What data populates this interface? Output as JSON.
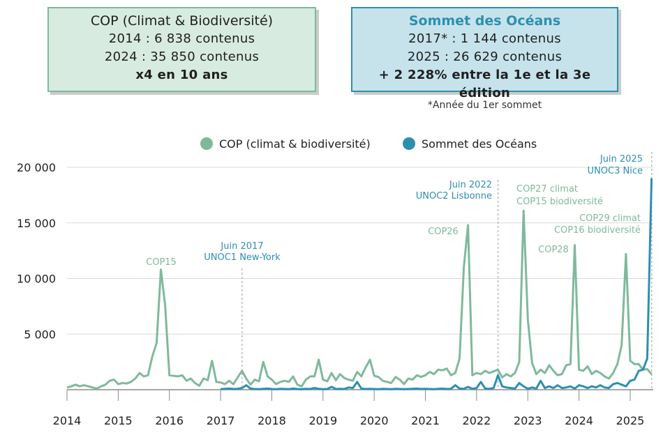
{
  "summary": {
    "cop": {
      "title": "COP (Climat & Biodiversité)",
      "line1": "2014 : 6 838 contenus",
      "line2": "2024 : 35 850 contenus",
      "line3": "x4 en 10 ans"
    },
    "ocean": {
      "title": "Sommet des Océans",
      "line1": "2017* : 1 144 contenus",
      "line2": "2025 : 26 629 contenus",
      "line3": "+ 2 228% entre la 1e et la 3e édition",
      "footnote": "*Année du 1er sommet"
    }
  },
  "colors": {
    "cop": "#7fb99c",
    "ocean": "#2d8fb0",
    "annotation_line": "#9a9a9a"
  },
  "chart_data": {
    "type": "line",
    "xlabel": "",
    "ylabel": "",
    "xlim": [
      2014,
      2025.45
    ],
    "ylim": [
      0,
      20000
    ],
    "grid": true,
    "legend_position": "top",
    "x_ticks": [
      2014,
      2015,
      2016,
      2017,
      2018,
      2019,
      2020,
      2021,
      2022,
      2023,
      2024,
      2025
    ],
    "x_tick_labels": [
      "2014",
      "2015",
      "2016",
      "2017",
      "2018",
      "2019",
      "2020",
      "2021",
      "2022",
      "2023",
      "2024",
      "2025"
    ],
    "y_ticks": [
      5000,
      10000,
      15000,
      20000
    ],
    "y_tick_labels": [
      "5 000",
      "10 000",
      "15 000",
      "20 000"
    ],
    "series": [
      {
        "name": "COP (climat & biodiversité)",
        "x": [
          2014.0,
          2014.083,
          2014.167,
          2014.25,
          2014.333,
          2014.417,
          2014.5,
          2014.583,
          2014.667,
          2014.75,
          2014.833,
          2014.917,
          2015.0,
          2015.083,
          2015.167,
          2015.25,
          2015.333,
          2015.417,
          2015.5,
          2015.583,
          2015.667,
          2015.75,
          2015.833,
          2015.917,
          2016.0,
          2016.083,
          2016.167,
          2016.25,
          2016.333,
          2016.417,
          2016.5,
          2016.583,
          2016.667,
          2016.75,
          2016.833,
          2016.917,
          2017.0,
          2017.083,
          2017.167,
          2017.25,
          2017.333,
          2017.417,
          2017.5,
          2017.583,
          2017.667,
          2017.75,
          2017.833,
          2017.917,
          2018.0,
          2018.083,
          2018.167,
          2018.25,
          2018.333,
          2018.417,
          2018.5,
          2018.583,
          2018.667,
          2018.75,
          2018.833,
          2018.917,
          2019.0,
          2019.083,
          2019.167,
          2019.25,
          2019.333,
          2019.417,
          2019.5,
          2019.583,
          2019.667,
          2019.75,
          2019.833,
          2019.917,
          2020.0,
          2020.083,
          2020.167,
          2020.25,
          2020.333,
          2020.417,
          2020.5,
          2020.583,
          2020.667,
          2020.75,
          2020.833,
          2020.917,
          2021.0,
          2021.083,
          2021.167,
          2021.25,
          2021.333,
          2021.417,
          2021.5,
          2021.583,
          2021.667,
          2021.75,
          2021.833,
          2021.917,
          2022.0,
          2022.083,
          2022.167,
          2022.25,
          2022.333,
          2022.417,
          2022.5,
          2022.583,
          2022.667,
          2022.75,
          2022.833,
          2022.917,
          2023.0,
          2023.083,
          2023.167,
          2023.25,
          2023.333,
          2023.417,
          2023.5,
          2023.583,
          2023.667,
          2023.75,
          2023.833,
          2023.917,
          2024.0,
          2024.083,
          2024.167,
          2024.25,
          2024.333,
          2024.417,
          2024.5,
          2024.583,
          2024.667,
          2024.75,
          2024.833,
          2024.917,
          2025.0,
          2025.083,
          2025.167,
          2025.25,
          2025.333,
          2025.417
        ],
        "values": [
          200,
          300,
          450,
          300,
          400,
          300,
          200,
          100,
          300,
          450,
          800,
          900,
          500,
          600,
          550,
          700,
          1000,
          1500,
          1200,
          1300,
          3000,
          4200,
          10800,
          7600,
          1300,
          1250,
          1200,
          1300,
          800,
          1000,
          600,
          350,
          1000,
          850,
          2600,
          700,
          650,
          500,
          800,
          500,
          1100,
          1700,
          1000,
          450,
          900,
          750,
          2500,
          1200,
          900,
          500,
          700,
          800,
          700,
          1200,
          450,
          300,
          900,
          1200,
          1200,
          2700,
          900,
          750,
          1500,
          850,
          1400,
          1050,
          900,
          800,
          1600,
          1200,
          2000,
          2700,
          1250,
          1150,
          800,
          700,
          600,
          1150,
          900,
          500,
          1000,
          900,
          1300,
          1150,
          1300,
          1600,
          1400,
          1800,
          1750,
          1900,
          1300,
          1500,
          2800,
          11000,
          14800,
          1300,
          1500,
          1400,
          1700,
          1500,
          1650,
          1800,
          1100,
          1400,
          1200,
          1500,
          2500,
          16100,
          6300,
          2400,
          1400,
          1800,
          1500,
          2200,
          1700,
          1300,
          1400,
          2200,
          2300,
          13000,
          1800,
          1700,
          2100,
          1400,
          1700,
          1500,
          1200,
          1000,
          1500,
          2300,
          4000,
          12200,
          2600,
          2300,
          2300,
          1800,
          1850,
          1400
        ]
      },
      {
        "name": "Sommet des Océans",
        "x": [
          2017.0,
          2017.083,
          2017.167,
          2017.25,
          2017.333,
          2017.417,
          2017.5,
          2017.583,
          2017.667,
          2017.75,
          2017.833,
          2017.917,
          2018.0,
          2018.083,
          2018.167,
          2018.25,
          2018.333,
          2018.417,
          2018.5,
          2018.583,
          2018.667,
          2018.75,
          2018.833,
          2018.917,
          2019.0,
          2019.083,
          2019.167,
          2019.25,
          2019.333,
          2019.417,
          2019.5,
          2019.583,
          2019.667,
          2019.75,
          2019.833,
          2019.917,
          2020.0,
          2020.083,
          2020.167,
          2020.25,
          2020.333,
          2020.417,
          2020.5,
          2020.583,
          2020.667,
          2020.75,
          2020.833,
          2020.917,
          2021.0,
          2021.083,
          2021.167,
          2021.25,
          2021.333,
          2021.417,
          2021.5,
          2021.583,
          2021.667,
          2021.75,
          2021.833,
          2021.917,
          2022.0,
          2022.083,
          2022.167,
          2022.25,
          2022.333,
          2022.417,
          2022.5,
          2022.583,
          2022.667,
          2022.75,
          2022.833,
          2022.917,
          2023.0,
          2023.083,
          2023.167,
          2023.25,
          2023.333,
          2023.417,
          2023.5,
          2023.583,
          2023.667,
          2023.75,
          2023.833,
          2023.917,
          2024.0,
          2024.083,
          2024.167,
          2024.25,
          2024.333,
          2024.417,
          2024.5,
          2024.583,
          2024.667,
          2024.75,
          2024.833,
          2024.917,
          2025.0,
          2025.083,
          2025.167,
          2025.25,
          2025.333,
          2025.417
        ],
        "values": [
          50,
          80,
          100,
          60,
          80,
          150,
          400,
          100,
          60,
          50,
          80,
          100,
          60,
          50,
          80,
          60,
          50,
          100,
          60,
          50,
          80,
          60,
          150,
          80,
          50,
          60,
          250,
          60,
          80,
          60,
          200,
          150,
          700,
          100,
          60,
          80,
          60,
          50,
          80,
          60,
          50,
          80,
          60,
          50,
          60,
          80,
          100,
          60,
          80,
          60,
          50,
          80,
          100,
          60,
          80,
          400,
          100,
          80,
          250,
          80,
          150,
          700,
          100,
          80,
          150,
          1300,
          300,
          200,
          150,
          100,
          600,
          300,
          80,
          200,
          100,
          800,
          150,
          300,
          150,
          400,
          150,
          200,
          300,
          100,
          400,
          300,
          150,
          300,
          200,
          400,
          200,
          150,
          500,
          600,
          450,
          300,
          800,
          900,
          1700,
          1800,
          2800,
          19000
        ]
      }
    ],
    "annotations": [
      {
        "text": "COP15",
        "series": "cop"
      },
      {
        "text": "Juin 2017",
        "text2": "UNOC1 New-York",
        "series": "ocean",
        "x": 2017.42
      },
      {
        "text": "COP26",
        "series": "cop"
      },
      {
        "text": "Juin 2022",
        "text2": "UNOC2 Lisbonne",
        "series": "ocean",
        "x": 2022.42
      },
      {
        "text": "COP27 climat",
        "text2": "COP15 biodiversité",
        "series": "cop"
      },
      {
        "text": "COP28",
        "series": "cop"
      },
      {
        "text": "COP29 climat",
        "text2": "COP16 biodiversité",
        "series": "cop"
      },
      {
        "text": "Juin 2025",
        "text2": "UNOC3 Nice",
        "series": "ocean",
        "x": 2025.42
      }
    ]
  }
}
